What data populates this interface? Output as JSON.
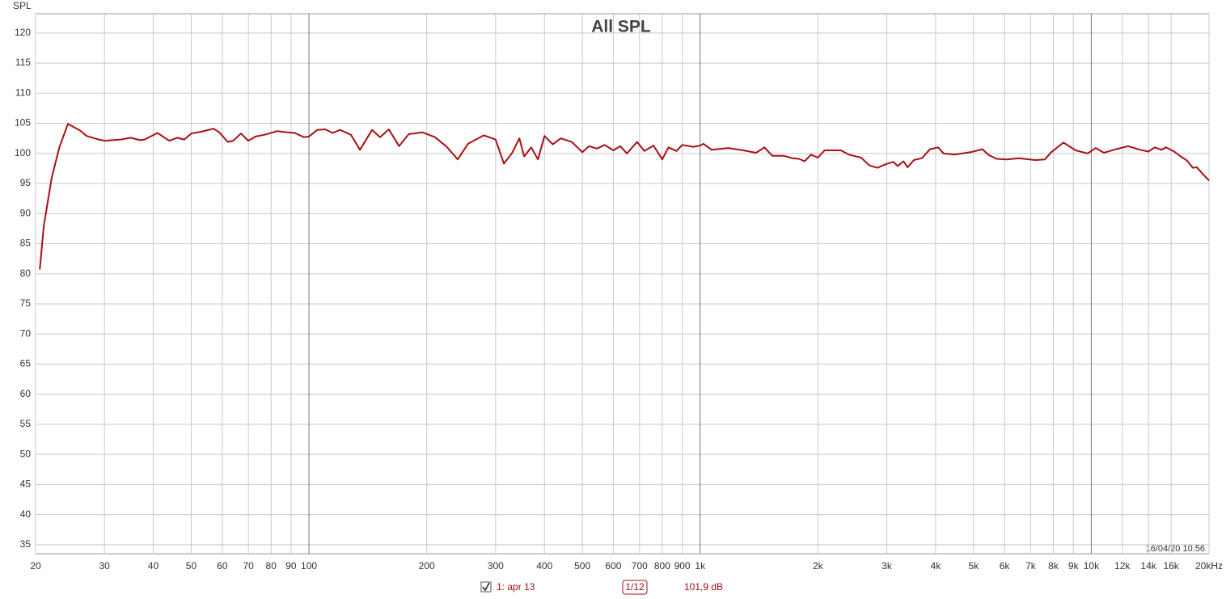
{
  "chart_data": {
    "type": "line",
    "title": "All SPL",
    "y_label": "SPL",
    "timestamp": "16/04/20 10.56",
    "smoothing": "1/12",
    "level": "101,9 dB",
    "log_x": true,
    "grid": true,
    "xlim": [
      20,
      20000
    ],
    "ylim": [
      33.5,
      123.2
    ],
    "xticks": [
      20,
      30,
      40,
      50,
      60,
      70,
      80,
      90,
      100,
      200,
      300,
      400,
      500,
      600,
      700,
      800,
      900,
      {
        "value": 1000,
        "label": "1k"
      },
      {
        "value": 2000,
        "label": "2k"
      },
      {
        "value": 3000,
        "label": "3k"
      },
      {
        "value": 4000,
        "label": "4k"
      },
      {
        "value": 5000,
        "label": "5k"
      },
      {
        "value": 6000,
        "label": "6k"
      },
      {
        "value": 7000,
        "label": "7k"
      },
      {
        "value": 8000,
        "label": "8k"
      },
      {
        "value": 9000,
        "label": "9k"
      },
      {
        "value": 10000,
        "label": "10k"
      },
      {
        "value": 12000,
        "label": "12k"
      },
      {
        "value": 14000,
        "label": "14k"
      },
      {
        "value": 16000,
        "label": "16k"
      },
      {
        "value": 20000,
        "label": "20kHz"
      }
    ],
    "yticks": [
      35,
      40,
      45,
      50,
      55,
      60,
      65,
      70,
      75,
      80,
      85,
      90,
      95,
      100,
      105,
      110,
      115,
      120
    ],
    "x": [
      20.5,
      21,
      22,
      23,
      24.2,
      26,
      27,
      29,
      30,
      33,
      35,
      37,
      38,
      41,
      43,
      44,
      46,
      48,
      50,
      53,
      57,
      59,
      62,
      64,
      67,
      70,
      73,
      77,
      83,
      88,
      92,
      97,
      100,
      105,
      110,
      115,
      120,
      128,
      135,
      145,
      152,
      160,
      170,
      180,
      195,
      210,
      225,
      240,
      255,
      280,
      300,
      315,
      330,
      345,
      355,
      370,
      385,
      400,
      420,
      440,
      470,
      500,
      520,
      545,
      570,
      600,
      625,
      650,
      690,
      720,
      760,
      800,
      830,
      870,
      900,
      960,
      1000,
      1020,
      1070,
      1180,
      1290,
      1390,
      1460,
      1530,
      1640,
      1720,
      1790,
      1850,
      1920,
      2000,
      2080,
      2290,
      2400,
      2580,
      2710,
      2840,
      2980,
      3120,
      3200,
      3310,
      3390,
      3520,
      3690,
      3870,
      4060,
      4190,
      4460,
      4910,
      5270,
      5450,
      5720,
      6080,
      6530,
      7180,
      7610,
      7900,
      8490,
      9120,
      9790,
      10270,
      10770,
      11560,
      12420,
      13340,
      13990,
      14530,
      15100,
      15530,
      16290,
      16920,
      17580,
      18180,
      18610,
      19330,
      20000
    ],
    "series": [
      {
        "name": "1: apr 13",
        "color": "#a80f14",
        "values": [
          80.7,
          88,
          96,
          101,
          104.9,
          103.8,
          102.9,
          102.3,
          102.1,
          102.3,
          102.6,
          102.2,
          102.3,
          103.4,
          102.5,
          102.1,
          102.6,
          102.3,
          103.3,
          103.6,
          104.1,
          103.5,
          101.9,
          102.1,
          103.3,
          102.1,
          102.8,
          103.1,
          103.7,
          103.5,
          103.4,
          102.7,
          102.8,
          103.9,
          104.0,
          103.4,
          103.9,
          103.1,
          100.6,
          103.9,
          102.7,
          104.0,
          101.2,
          103.2,
          103.5,
          102.7,
          101.1,
          99.0,
          101.6,
          103.0,
          102.3,
          98.3,
          100.0,
          102.5,
          99.5,
          101.0,
          99.0,
          102.9,
          101.5,
          102.5,
          101.9,
          100.2,
          101.2,
          100.8,
          101.4,
          100.5,
          101.2,
          100.0,
          101.9,
          100.4,
          101.3,
          99.0,
          101.0,
          100.4,
          101.4,
          101.1,
          101.3,
          101.6,
          100.6,
          100.9,
          100.5,
          100.1,
          101.0,
          99.6,
          99.6,
          99.2,
          99.1,
          98.7,
          99.8,
          99.3,
          100.5,
          100.5,
          99.8,
          99.3,
          98.0,
          97.6,
          98.2,
          98.6,
          97.9,
          98.7,
          97.7,
          98.9,
          99.2,
          100.7,
          101.0,
          100.0,
          99.8,
          100.2,
          100.7,
          99.8,
          99.1,
          99.0,
          99.2,
          98.9,
          99.0,
          100.2,
          101.8,
          100.5,
          100.0,
          100.9,
          100.1,
          100.7,
          101.2,
          100.6,
          100.3,
          101.0,
          100.6,
          101.0,
          100.3,
          99.5,
          98.8,
          97.6,
          97.7,
          96.5,
          95.5
        ]
      }
    ]
  }
}
